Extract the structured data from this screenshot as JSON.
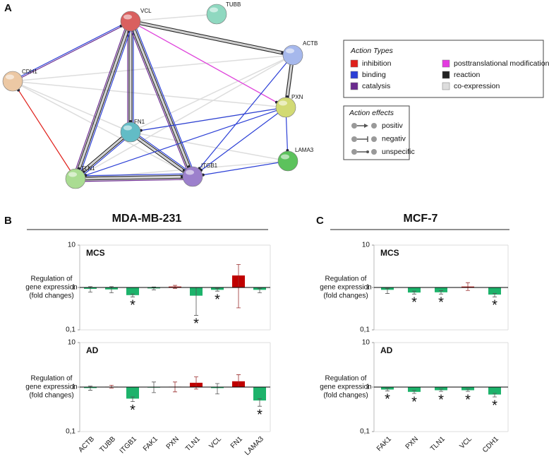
{
  "panels": {
    "A": {
      "letter": "A"
    },
    "B": {
      "letter": "B",
      "title": "MDA-MB-231"
    },
    "C": {
      "letter": "C",
      "title": "MCF-7"
    }
  },
  "network": {
    "nodes": [
      "VCL",
      "TUBB",
      "ACTB",
      "CDH1",
      "FN1",
      "PXN",
      "LAMA3",
      "TLN1",
      "ITGB1"
    ],
    "legend_types": {
      "title": "Action Types",
      "items": [
        "inhibition",
        "binding",
        "catalysis",
        "posttranslational modification",
        "reaction",
        "co-expression"
      ],
      "colors": [
        "#e0201b",
        "#2b3fd6",
        "#6a2a8e",
        "#e43be0",
        "#222222",
        "#dddddd"
      ]
    },
    "legend_effects": {
      "title": "Action effects",
      "items": [
        "positiv",
        "negativ",
        "unspecific"
      ]
    }
  },
  "chart_data": [
    {
      "type": "bar",
      "title": "MCS",
      "group": "B",
      "ylabel_lines": [
        "Regulation of",
        "gene expression",
        "(fold changes)"
      ],
      "log": true,
      "ylim": [
        0.1,
        10
      ],
      "yticks": [
        {
          "value": 0.1,
          "label": "0,1"
        },
        1,
        10
      ],
      "categories": [
        "ACTB",
        "TUBB",
        "ITGB1",
        "FAK1",
        "PXN",
        "TLN1",
        "VCL",
        "FN1",
        "LAMA3"
      ],
      "values": [
        0.93,
        0.9,
        0.66,
        0.95,
        1.05,
        0.64,
        0.88,
        1.92,
        0.88
      ],
      "err_low": [
        0.78,
        0.75,
        0.6,
        0.88,
        0.95,
        0.22,
        0.82,
        0.33,
        0.75
      ],
      "err_high": [
        1.05,
        1.05,
        0.7,
        1.03,
        1.12,
        1.0,
        0.95,
        3.5,
        0.95
      ],
      "colors": [
        "#1db36b",
        "#1db36b",
        "#1db36b",
        "#1db36b",
        "#c00000",
        "#1db36b",
        "#1db36b",
        "#c00000",
        "#1db36b"
      ],
      "significance": [
        null,
        null,
        "*",
        null,
        null,
        "*",
        "*",
        null,
        null
      ]
    },
    {
      "type": "bar",
      "title": "AD",
      "group": "B",
      "ylabel_lines": [
        "Regulation of",
        "gene expression",
        "(fold changes)"
      ],
      "log": true,
      "ylim": [
        0.1,
        10
      ],
      "yticks": [
        {
          "value": 0.1,
          "label": "0,1"
        },
        1,
        10
      ],
      "categories": [
        "ACTB",
        "TUBB",
        "ITGB1",
        "FAK1",
        "PXN",
        "TLN1",
        "VCL",
        "FN1",
        "LAMA3"
      ],
      "values": [
        0.95,
        1.02,
        0.55,
        1.0,
        1.02,
        1.25,
        0.95,
        1.35,
        0.5
      ],
      "err_low": [
        0.85,
        0.95,
        0.47,
        0.75,
        0.78,
        0.9,
        0.7,
        1.0,
        0.37
      ],
      "err_high": [
        1.05,
        1.1,
        0.6,
        1.3,
        1.3,
        1.7,
        1.2,
        1.9,
        0.55
      ],
      "colors": [
        "#1db36b",
        "#c00000",
        "#1db36b",
        "#1db36b",
        "#c00000",
        "#c00000",
        "#1db36b",
        "#c00000",
        "#1db36b"
      ],
      "significance": [
        null,
        null,
        "*",
        null,
        null,
        null,
        null,
        null,
        "*"
      ]
    },
    {
      "type": "bar",
      "title": "MCS",
      "group": "C",
      "ylabel_lines": [
        "Regulation of",
        "gene expression",
        "(fold changes)"
      ],
      "log": true,
      "ylim": [
        0.1,
        10
      ],
      "yticks": [
        {
          "value": 0.1,
          "label": "0,1"
        },
        1,
        10
      ],
      "categories": [
        "FAK1",
        "PXN",
        "TLN1",
        "VCL",
        "CDH1"
      ],
      "values": [
        0.88,
        0.76,
        0.77,
        1.05,
        0.68
      ],
      "err_low": [
        0.72,
        0.7,
        0.7,
        0.85,
        0.6
      ],
      "err_high": [
        0.95,
        0.82,
        0.84,
        1.3,
        0.72
      ],
      "colors": [
        "#1db36b",
        "#1db36b",
        "#1db36b",
        "#c00000",
        "#1db36b"
      ],
      "significance": [
        null,
        "*",
        "*",
        null,
        "*"
      ]
    },
    {
      "type": "bar",
      "title": "AD",
      "group": "C",
      "ylabel_lines": [
        "Regulation of",
        "gene expression",
        "(fold changes)"
      ],
      "log": true,
      "ylim": [
        0.1,
        10
      ],
      "yticks": [
        {
          "value": 0.1,
          "label": "0,1"
        },
        1,
        10
      ],
      "categories": [
        "FAK1",
        "PXN",
        "TLN1",
        "VCL",
        "CDH1"
      ],
      "values": [
        0.88,
        0.78,
        0.85,
        0.85,
        0.68
      ],
      "err_low": [
        0.82,
        0.72,
        0.8,
        0.8,
        0.6
      ],
      "err_high": [
        0.93,
        0.84,
        0.9,
        0.9,
        0.72
      ],
      "colors": [
        "#1db36b",
        "#1db36b",
        "#1db36b",
        "#1db36b",
        "#1db36b"
      ],
      "significance": [
        "*",
        "*",
        "*",
        "*",
        "*"
      ]
    }
  ]
}
